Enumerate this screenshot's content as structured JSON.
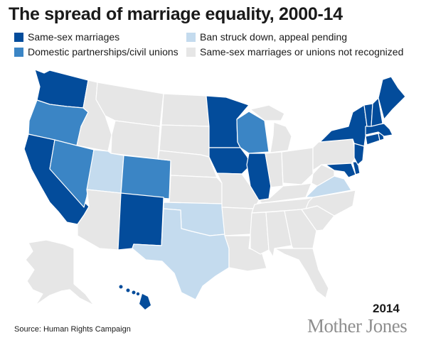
{
  "title": "The spread of marriage equality, 2000-14",
  "legend": [
    {
      "label": "Same-sex marriages",
      "color": "#034c9b"
    },
    {
      "label": "Domestic partnerships/civil unions",
      "color": "#3b85c5"
    },
    {
      "label": "Ban struck down, appeal pending",
      "color": "#c4dbee"
    },
    {
      "label": "Same-sex marriages or unions not recognized",
      "color": "#e6e6e6"
    }
  ],
  "states": {
    "same_sex_marriage": [
      "Washington",
      "California",
      "New Mexico",
      "Minnesota",
      "Iowa",
      "Illinois",
      "New York",
      "Vermont",
      "New Hampshire",
      "Maine",
      "Massachusetts",
      "Connecticut",
      "Rhode Island",
      "New Jersey",
      "Maryland",
      "Delaware",
      "Hawaii"
    ],
    "civil_unions": [
      "Oregon",
      "Nevada",
      "Colorado",
      "Wisconsin"
    ],
    "ban_struck_down": [
      "Utah",
      "Oklahoma",
      "Texas",
      "Virginia"
    ]
  },
  "year": "2014",
  "source": "Source: Human Rights Campaign",
  "brand": "Mother Jones"
}
